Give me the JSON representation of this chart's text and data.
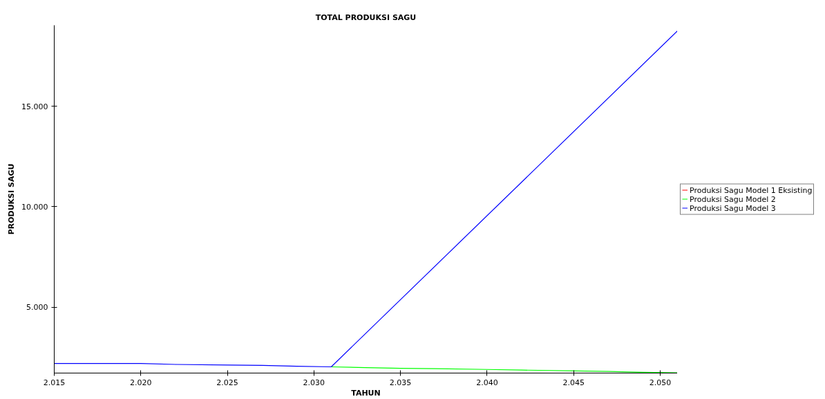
{
  "chart_data": {
    "type": "line",
    "title": "TOTAL PRODUKSI SAGU",
    "xlabel": "TAHUN",
    "ylabel": "PRODUKSI SAGU",
    "x": [
      2015,
      2020,
      2022,
      2025,
      2027,
      2029,
      2031,
      2051
    ],
    "series": [
      {
        "name": "Produksi Sagu Model 1 Eksisting",
        "color": "#ff0000",
        "values": [
          null,
          null,
          null,
          null,
          null,
          null,
          null,
          null
        ]
      },
      {
        "name": "Produksi Sagu Model 2",
        "color": "#00ff00",
        "x": [
          2031,
          2033,
          2035,
          2037,
          2040,
          2042,
          2045,
          2047,
          2049,
          2051
        ],
        "values": [
          2030,
          1990,
          1960,
          1940,
          1900,
          1870,
          1830,
          1800,
          1760,
          1730
        ]
      },
      {
        "name": "Produksi Sagu Model 3",
        "color": "#0000ff",
        "values": [
          2200,
          2200,
          2150,
          2120,
          2100,
          2060,
          2030,
          18750
        ]
      }
    ],
    "xlim": [
      2015,
      2051
    ],
    "ylim": [
      1720,
      19030
    ],
    "xticks": [
      {
        "value": 2015,
        "label": "2.015"
      },
      {
        "value": 2020,
        "label": "2.020"
      },
      {
        "value": 2025,
        "label": "2.025"
      },
      {
        "value": 2030,
        "label": "2.030"
      },
      {
        "value": 2035,
        "label": "2.035"
      },
      {
        "value": 2040,
        "label": "2.040"
      },
      {
        "value": 2045,
        "label": "2.045"
      },
      {
        "value": 2050,
        "label": "2.050"
      }
    ],
    "yticks": [
      {
        "value": 5000,
        "label": "5.000"
      },
      {
        "value": 10000,
        "label": "10.000"
      },
      {
        "value": 15000,
        "label": "15.000"
      }
    ],
    "grid": false,
    "legend": "right",
    "marker": "none",
    "line_style": "solid"
  }
}
